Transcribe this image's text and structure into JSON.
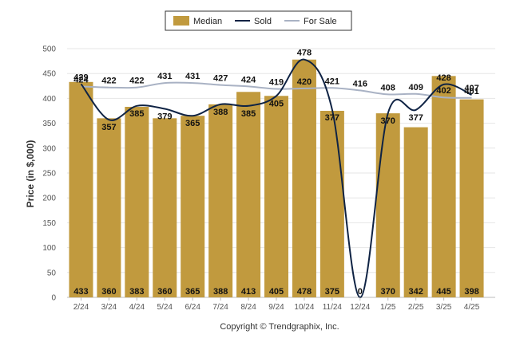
{
  "chart_data": {
    "type": "bar",
    "categories": [
      "2/24",
      "3/24",
      "4/24",
      "5/24",
      "6/24",
      "7/24",
      "8/24",
      "9/24",
      "10/24",
      "11/24",
      "12/24",
      "1/25",
      "2/25",
      "3/25",
      "4/25"
    ],
    "series": [
      {
        "name": "Median",
        "kind": "bar",
        "color": "#C19A3E",
        "values": [
          433,
          360,
          383,
          360,
          365,
          388,
          413,
          405,
          478,
          375,
          0,
          370,
          342,
          445,
          398
        ]
      },
      {
        "name": "Sold",
        "kind": "line",
        "color": "#0F2344",
        "values": [
          429,
          357,
          385,
          379,
          365,
          388,
          385,
          405,
          478,
          377,
          0,
          370,
          377,
          428,
          407
        ]
      },
      {
        "name": "For Sale",
        "kind": "line",
        "color": "#A9B2C4",
        "values": [
          424,
          422,
          422,
          431,
          431,
          427,
          424,
          419,
          420,
          421,
          416,
          408,
          409,
          402,
          401
        ]
      }
    ],
    "ylabel": "Price (in $,000)",
    "xlabel": "",
    "ylim": [
      0,
      500
    ],
    "yticks": [
      0,
      50,
      100,
      150,
      200,
      250,
      300,
      350,
      400,
      450,
      500
    ],
    "grid": true,
    "legend": "top-center"
  },
  "copyright": "Copyright © Trendgraphix, Inc."
}
